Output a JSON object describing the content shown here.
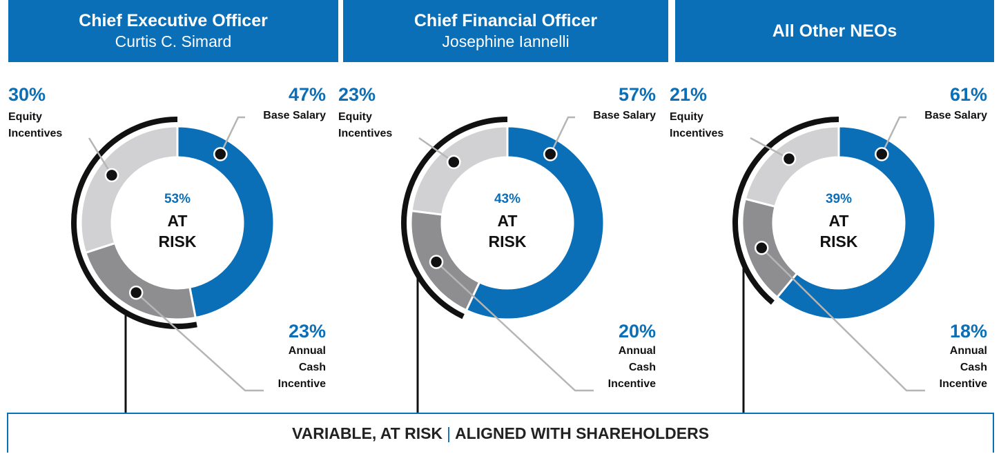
{
  "chart_data": [
    {
      "type": "pie",
      "title": "Chief Executive Officer",
      "subtitle": "Curtis C. Simard",
      "categories": [
        "Base Salary",
        "Annual Cash Incentive",
        "Equity Incentives"
      ],
      "values": [
        47,
        23,
        30
      ],
      "value_labels": [
        "47%",
        "23%",
        "30%"
      ],
      "colors": [
        "#0a6fb7",
        "#8e8e90",
        "#d1d1d3"
      ],
      "center_value": 53,
      "center_value_label": "53%",
      "center_label": "AT RISK"
    },
    {
      "type": "pie",
      "title": "Chief Financial Officer",
      "subtitle": "Josephine Iannelli",
      "categories": [
        "Base Salary",
        "Annual Cash Incentive",
        "Equity Incentives"
      ],
      "values": [
        57,
        20,
        23
      ],
      "value_labels": [
        "57%",
        "20%",
        "23%"
      ],
      "colors": [
        "#0a6fb7",
        "#8e8e90",
        "#d1d1d3"
      ],
      "center_value": 43,
      "center_value_label": "43%",
      "center_label": "AT RISK"
    },
    {
      "type": "pie",
      "title": "All Other NEOs",
      "categories": [
        "Base Salary",
        "Annual Cash Incentive",
        "Equity Incentives"
      ],
      "values": [
        61,
        18,
        21
      ],
      "value_labels": [
        "61%",
        "18%",
        "21%"
      ],
      "colors": [
        "#0a6fb7",
        "#8e8e90",
        "#d1d1d3"
      ],
      "center_value": 39,
      "center_value_label": "39%",
      "center_label": "AT RISK"
    }
  ],
  "footer": {
    "left": "VARIABLE, AT RISK",
    "separator": "|",
    "right": "ALIGNED WITH SHAREHOLDERS"
  }
}
